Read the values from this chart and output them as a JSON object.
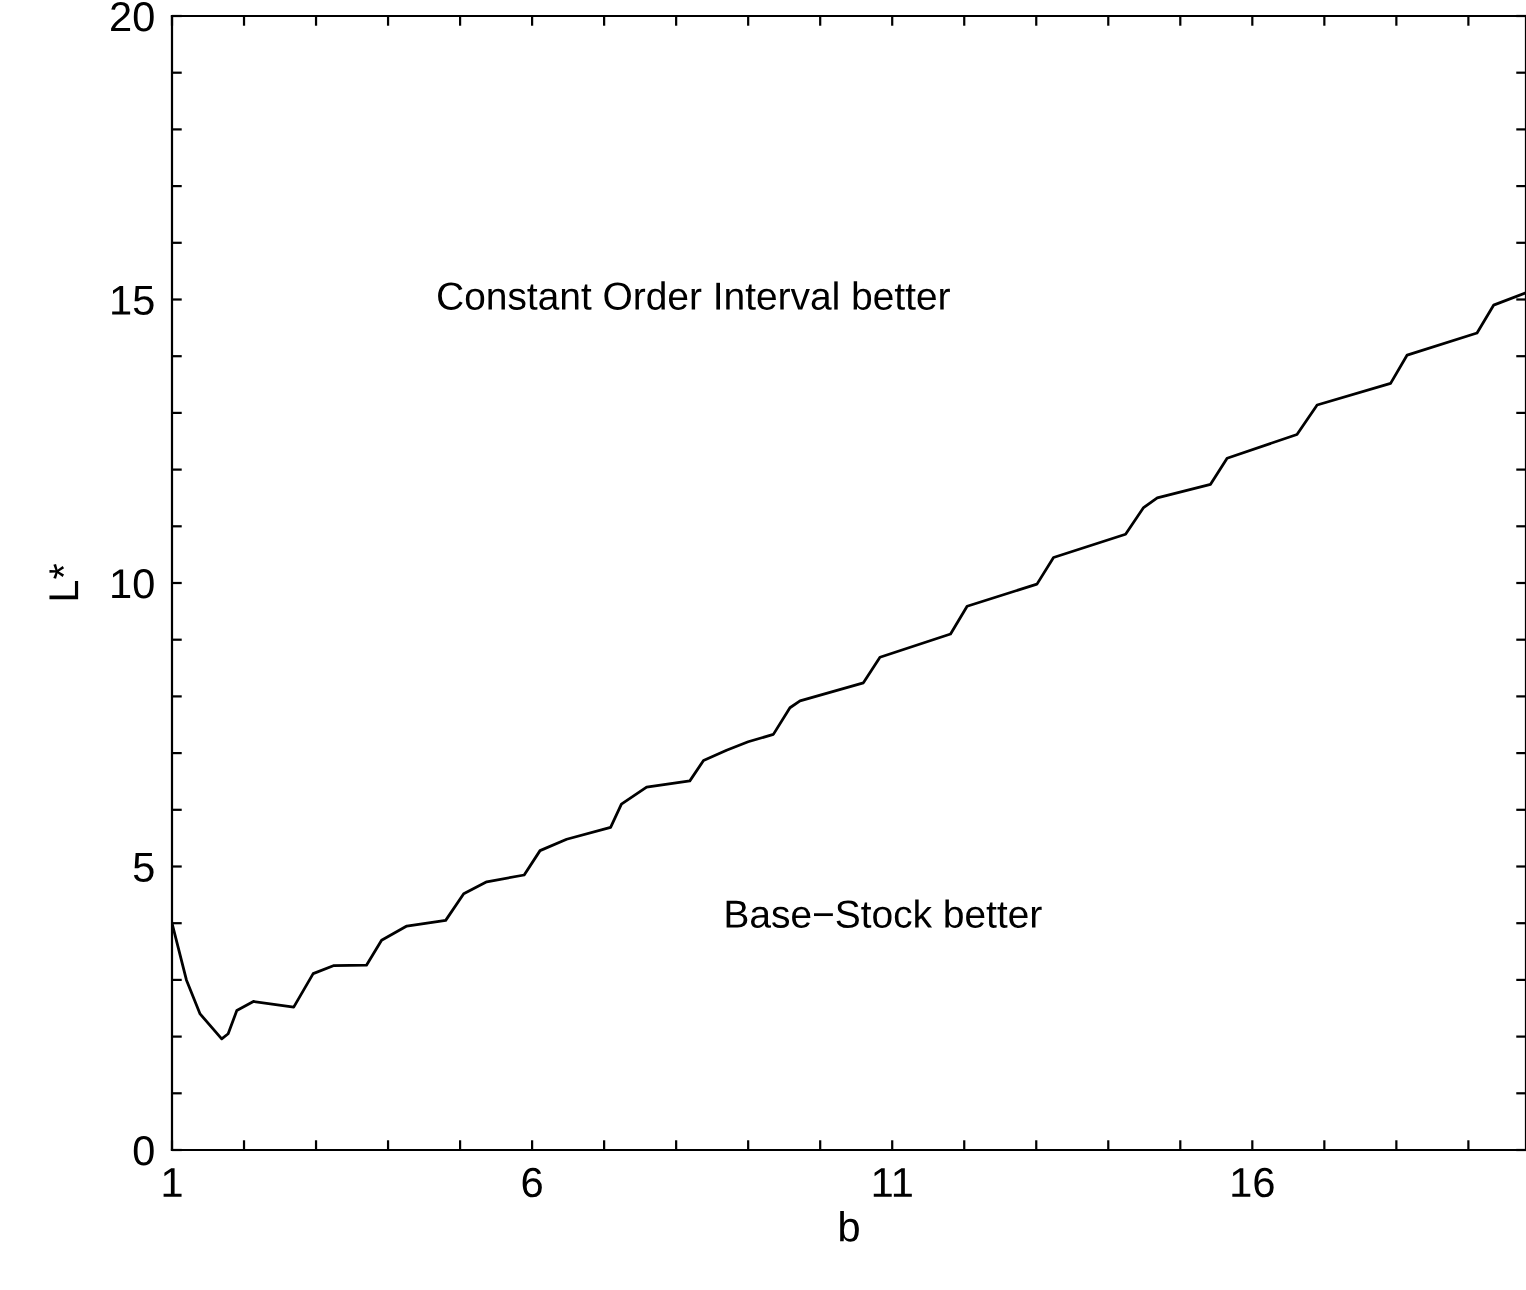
{
  "chart_data": {
    "type": "line",
    "xlabel": "b",
    "ylabel": "L*",
    "annotations": [
      "Constant Order Interval better",
      "Base−Stock better"
    ],
    "xlim": [
      1,
      19.8
    ],
    "ylim": [
      0,
      20
    ],
    "xticks": [
      1,
      {
        "value": 2,
        "label": null
      },
      {
        "value": 3,
        "label": null
      },
      {
        "value": 4,
        "label": null
      },
      {
        "value": 5,
        "label": null
      },
      6,
      {
        "value": 7,
        "label": null
      },
      {
        "value": 8,
        "label": null
      },
      {
        "value": 9,
        "label": null
      },
      {
        "value": 10,
        "label": null
      },
      11,
      {
        "value": 12,
        "label": null
      },
      {
        "value": 13,
        "label": null
      },
      {
        "value": 14,
        "label": null
      },
      {
        "value": 15,
        "label": null
      },
      16,
      {
        "value": 17,
        "label": null
      },
      {
        "value": 18,
        "label": null
      },
      {
        "value": 19,
        "label": null
      }
    ],
    "yticks": [
      0,
      {
        "value": 1,
        "label": null
      },
      {
        "value": 2,
        "label": null
      },
      {
        "value": 3,
        "label": null
      },
      {
        "value": 4,
        "label": null
      },
      5,
      {
        "value": 6,
        "label": null
      },
      {
        "value": 7,
        "label": null
      },
      {
        "value": 8,
        "label": null
      },
      {
        "value": 9,
        "label": null
      },
      10,
      {
        "value": 11,
        "label": null
      },
      {
        "value": 12,
        "label": null
      },
      {
        "value": 13,
        "label": null
      },
      {
        "value": 14,
        "label": null
      },
      15,
      {
        "value": 16,
        "label": null
      },
      {
        "value": 17,
        "label": null
      },
      {
        "value": 18,
        "label": null
      },
      {
        "value": 19,
        "label": null
      },
      20
    ],
    "grid": false,
    "legend": false,
    "marker": "none",
    "line_style": "solid",
    "series": [
      {
        "color": "#000000",
        "x": [
          1.0,
          1.2,
          1.39,
          1.69,
          1.78,
          1.9,
          2.13,
          2.69,
          2.96,
          3.24,
          3.7,
          3.91,
          4.26,
          4.8,
          5.05,
          5.37,
          5.89,
          6.11,
          6.48,
          7.09,
          7.24,
          7.59,
          8.19,
          8.38,
          8.7,
          9.0,
          9.35,
          9.58,
          9.72,
          10.6,
          10.83,
          11.81,
          12.04,
          13.01,
          13.24,
          14.24,
          14.49,
          14.68,
          15.42,
          15.65,
          16.62,
          16.9,
          17.92,
          18.15,
          19.12,
          19.35,
          19.8
        ],
        "values": [
          4.0,
          3.0,
          2.4,
          1.96,
          2.05,
          2.46,
          2.62,
          2.52,
          3.11,
          3.25,
          3.26,
          3.7,
          3.95,
          4.05,
          4.52,
          4.73,
          4.85,
          5.28,
          5.48,
          5.69,
          6.1,
          6.4,
          6.51,
          6.87,
          7.05,
          7.2,
          7.33,
          7.8,
          7.92,
          8.24,
          8.69,
          9.1,
          9.59,
          9.98,
          10.45,
          10.86,
          11.33,
          11.5,
          11.74,
          12.2,
          12.62,
          13.14,
          13.52,
          14.02,
          14.41,
          14.9,
          15.12
        ]
      }
    ]
  }
}
